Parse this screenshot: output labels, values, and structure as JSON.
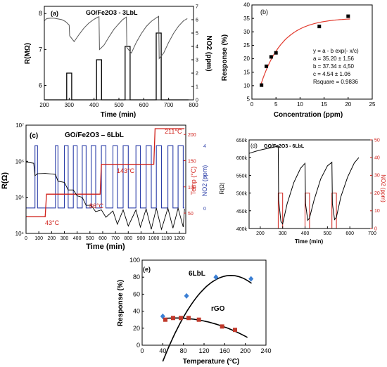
{
  "chart_data": [
    {
      "panel": "(a)",
      "type": "line",
      "title": "GO/Fe2O3 - 3LbL",
      "xlabel": "Time (min)",
      "ylabel": "R(MΩ)",
      "y2label": "NO2 (ppm)",
      "xlim": [
        200,
        800
      ],
      "ylim": [
        5.6,
        8.2
      ],
      "y2lim": [
        0,
        7
      ],
      "xticks": [
        "200",
        "300",
        "400",
        "500",
        "600",
        "700",
        "800"
      ],
      "yticks": [
        "6",
        "7",
        "8"
      ],
      "y2ticks": [
        "0",
        "1",
        "2",
        "3",
        "4",
        "5",
        "6",
        "7"
      ],
      "series": [
        {
          "name": "Resistance",
          "color": "#555555",
          "x": [
            200,
            210,
            225,
            240,
            255,
            270,
            285,
            300,
            302,
            320,
            340,
            360,
            380,
            400,
            415,
            420,
            422,
            440,
            460,
            480,
            500,
            515,
            530,
            532,
            550,
            570,
            590,
            610,
            630,
            650,
            660,
            662,
            680,
            700,
            720,
            740,
            760,
            775
          ],
          "y": [
            7.8,
            7.86,
            7.87,
            7.87,
            7.85,
            7.83,
            7.78,
            7.68,
            7.38,
            7.22,
            7.42,
            7.6,
            7.74,
            7.84,
            7.9,
            7.91,
            7.0,
            7.12,
            7.35,
            7.56,
            7.72,
            7.83,
            7.9,
            7.05,
            6.9,
            7.2,
            7.44,
            7.64,
            7.78,
            7.88,
            7.92,
            6.75,
            6.9,
            7.2,
            7.45,
            7.65,
            7.8,
            7.86
          ]
        },
        {
          "name": "NO2 pulse",
          "color": "#000000",
          "x": [
            200,
            290,
            290,
            310,
            310,
            410,
            410,
            430,
            430,
            525,
            525,
            545,
            545,
            650,
            650,
            670,
            670,
            780
          ],
          "y": [
            0,
            0,
            2,
            2,
            0,
            0,
            3,
            3,
            0,
            0,
            4,
            4,
            0,
            0,
            5,
            5,
            0,
            0
          ]
        }
      ]
    },
    {
      "panel": "(b)",
      "type": "scatter",
      "xlabel": "Concentration (ppm)",
      "ylabel": "Response (%)",
      "xlim": [
        0,
        25
      ],
      "ylim": [
        5,
        40
      ],
      "xticks": [
        "0",
        "5",
        "10",
        "15",
        "20",
        "25"
      ],
      "yticks": [
        "5",
        "10",
        "15",
        "20",
        "25",
        "30",
        "35",
        "40"
      ],
      "series": [
        {
          "name": "data",
          "color": "#000000",
          "x": [
            2,
            3,
            4,
            5,
            14,
            20
          ],
          "y": [
            10.2,
            17.2,
            20.7,
            22.2,
            32,
            35.8
          ]
        },
        {
          "name": "fit",
          "color": "#e23a2e",
          "a": 35.2,
          "b": 37.34,
          "c": 4.54
        }
      ],
      "annotations": [
        "y = a - b exp(- x/c)",
        "a = 35.20 ± 1,56",
        "b = 37.34 ± 4,50",
        "c = 4.54 ± 1.06",
        "Rsquare = 0.9836"
      ]
    },
    {
      "panel": "(c)",
      "type": "line",
      "title": "GO/Fe2O3 – 6LbL",
      "xlabel": "Time (min)",
      "ylabel": "R(Ω)",
      "y2label": "Temp (°C)",
      "y3label": "NO2 (ppm)",
      "xlim": [
        0,
        1250
      ],
      "ylim_log": [
        10000.0,
        10000000.0
      ],
      "xticks": [
        "0",
        "100",
        "200",
        "300",
        "400",
        "500",
        "600",
        "700",
        "800",
        "900",
        "1000",
        "1100",
        "1200"
      ],
      "yticks": [
        "10⁴",
        "10⁵",
        "10⁶",
        "10⁷"
      ],
      "y2ticks": [
        "50",
        "100",
        "150",
        "200"
      ],
      "y3ticks": [
        "0",
        "2",
        "4"
      ],
      "temperature_labels": [
        "43°C",
        "86°C",
        "143°C",
        "211°C"
      ],
      "series": [
        {
          "name": "Resistance",
          "color": "#000000"
        },
        {
          "name": "Temperature",
          "color": "#d0201a",
          "x": [
            0,
            150,
            160,
            400,
            410,
            580,
            590,
            700,
            710,
            1000,
            1010,
            1240
          ],
          "y": [
            43,
            43,
            86,
            86,
            86,
            86,
            143,
            143,
            143,
            143,
            211,
            211
          ]
        },
        {
          "name": "NO2 pulse",
          "color": "#2b3ea8",
          "x": [
            70,
            90,
            230,
            250,
            300,
            330,
            370,
            400,
            440,
            470,
            510,
            545,
            590,
            625,
            680,
            715,
            760,
            800,
            860,
            895,
            940,
            980,
            1020,
            1060,
            1110,
            1150,
            1190,
            1230
          ],
          "state": "alternating"
        }
      ]
    },
    {
      "panel": "(d)",
      "type": "line",
      "title": "GO/Fe2O3 - 6LbL",
      "xlabel": "Time (min)",
      "ylabel": "R(Ω)",
      "y2label": "NO2 (ppm)",
      "xlim": [
        150,
        700
      ],
      "ylim": [
        400000,
        650000
      ],
      "y2lim": [
        0,
        50
      ],
      "xticks": [
        "200",
        "300",
        "400",
        "500",
        "600",
        "700"
      ],
      "yticks": [
        "400k",
        "450k",
        "500k",
        "550k",
        "600k",
        "650k"
      ],
      "y2ticks": [
        "0",
        "10",
        "20",
        "30",
        "40",
        "50"
      ],
      "series": [
        {
          "name": "Resistance",
          "color": "#000000",
          "x": [
            150,
            180,
            210,
            240,
            270,
            280,
            282,
            292,
            300,
            320,
            350,
            380,
            400,
            402,
            412,
            420,
            440,
            470,
            500,
            520,
            522,
            532,
            540,
            560,
            590,
            620,
            640
          ],
          "y": [
            612000,
            618000,
            623000,
            627000,
            631000,
            632000,
            480000,
            420000,
            413000,
            470000,
            530000,
            570000,
            584000,
            470000,
            423000,
            430000,
            480000,
            540000,
            577000,
            587000,
            470000,
            425000,
            432000,
            490000,
            545000,
            585000,
            600000
          ]
        },
        {
          "name": "NO2 pulse",
          "color": "#d0201a",
          "x": [
            150,
            280,
            280,
            300,
            300,
            400,
            400,
            420,
            420,
            520,
            520,
            540,
            540,
            640
          ],
          "y": [
            0,
            0,
            20,
            20,
            0,
            0,
            20,
            20,
            0,
            0,
            20,
            20,
            0,
            0
          ]
        }
      ]
    },
    {
      "panel": "(e)",
      "type": "line",
      "xlabel": "Temperature (°C)",
      "ylabel": "Response (%)",
      "xlim": [
        0,
        240
      ],
      "ylim": [
        0,
        100
      ],
      "xticks": [
        "0",
        "40",
        "80",
        "120",
        "160",
        "200",
        "240"
      ],
      "yticks": [
        "0",
        "20",
        "40",
        "60",
        "80",
        "100"
      ],
      "series": [
        {
          "name": "6LbL",
          "color": "#3b7fd4",
          "marker": "diamond",
          "x": [
            40,
            86,
            143,
            211
          ],
          "y": [
            34,
            58,
            80,
            78
          ]
        },
        {
          "name": "rGO",
          "color": "#c0392b",
          "marker": "square",
          "x": [
            45,
            60,
            75,
            90,
            110,
            155,
            180
          ],
          "y": [
            30,
            32,
            32,
            32,
            30,
            22,
            18
          ]
        }
      ]
    }
  ]
}
